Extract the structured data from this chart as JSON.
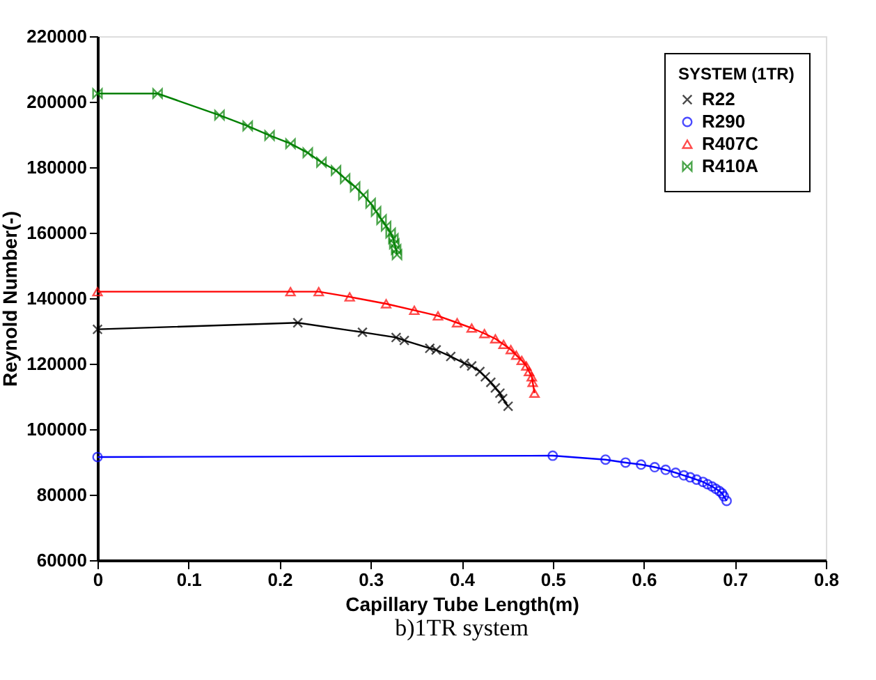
{
  "chart_data": {
    "type": "line",
    "xlabel": "Capillary Tube Length(m)",
    "ylabel": "Reynold Number(-)",
    "legend_title": "SYSTEM (1TR)",
    "legend": "top right",
    "grid": false,
    "xlim": [
      0,
      0.8
    ],
    "xticks": [
      0,
      0.1,
      0.2,
      0.3,
      0.4,
      0.5,
      0.6,
      0.7,
      0.8
    ],
    "ylim": [
      60000,
      220000
    ],
    "yticks": [
      60000,
      80000,
      100000,
      120000,
      140000,
      160000,
      180000,
      200000,
      220000
    ],
    "annotations": [
      "b)1TR system"
    ],
    "series": [
      {
        "name": "R22",
        "color": "#000000",
        "marker": "cross",
        "x": [
          0,
          0.22,
          0.291,
          0.328,
          0.337,
          0.365,
          0.372,
          0.388,
          0.403,
          0.411,
          0.42,
          0.426,
          0.432,
          0.437,
          0.442,
          0.445,
          0.451
        ],
        "values": [
          130500,
          132500,
          129600,
          128000,
          127100,
          124700,
          124200,
          122200,
          120100,
          119300,
          117600,
          116000,
          114300,
          112600,
          111000,
          109300,
          107000
        ]
      },
      {
        "name": "R290",
        "color": "#0000ff",
        "marker": "circle",
        "x": [
          0,
          0.5,
          0.558,
          0.58,
          0.597,
          0.612,
          0.624,
          0.635,
          0.644,
          0.651,
          0.658,
          0.665,
          0.67,
          0.675,
          0.679,
          0.683,
          0.686,
          0.688,
          0.691
        ],
        "values": [
          91500,
          91900,
          90700,
          89800,
          89200,
          88400,
          87600,
          86700,
          85900,
          85300,
          84600,
          83900,
          83200,
          82500,
          81800,
          81100,
          80400,
          79500,
          78100
        ]
      },
      {
        "name": "R407C",
        "color": "#ff0000",
        "marker": "triangle",
        "x": [
          0,
          0.212,
          0.243,
          0.277,
          0.317,
          0.348,
          0.374,
          0.395,
          0.411,
          0.425,
          0.437,
          0.446,
          0.454,
          0.46,
          0.466,
          0.471,
          0.474,
          0.477,
          0.478,
          0.48
        ],
        "values": [
          142000,
          142000,
          142000,
          140400,
          138300,
          136300,
          134600,
          132500,
          130900,
          129200,
          127600,
          125900,
          124300,
          122600,
          121000,
          119300,
          117600,
          116000,
          114300,
          111000
        ]
      },
      {
        "name": "R410A",
        "color": "#008000",
        "marker": "diamond",
        "x": [
          0,
          0.066,
          0.134,
          0.165,
          0.189,
          0.212,
          0.231,
          0.246,
          0.262,
          0.272,
          0.283,
          0.292,
          0.3,
          0.306,
          0.312,
          0.317,
          0.322,
          0.325,
          0.326,
          0.328,
          0.329
        ],
        "values": [
          202500,
          202500,
          195900,
          192600,
          189700,
          187200,
          184400,
          181500,
          179000,
          176500,
          174000,
          171500,
          169000,
          166500,
          164000,
          162000,
          159900,
          158200,
          156600,
          154900,
          153300
        ]
      }
    ]
  }
}
